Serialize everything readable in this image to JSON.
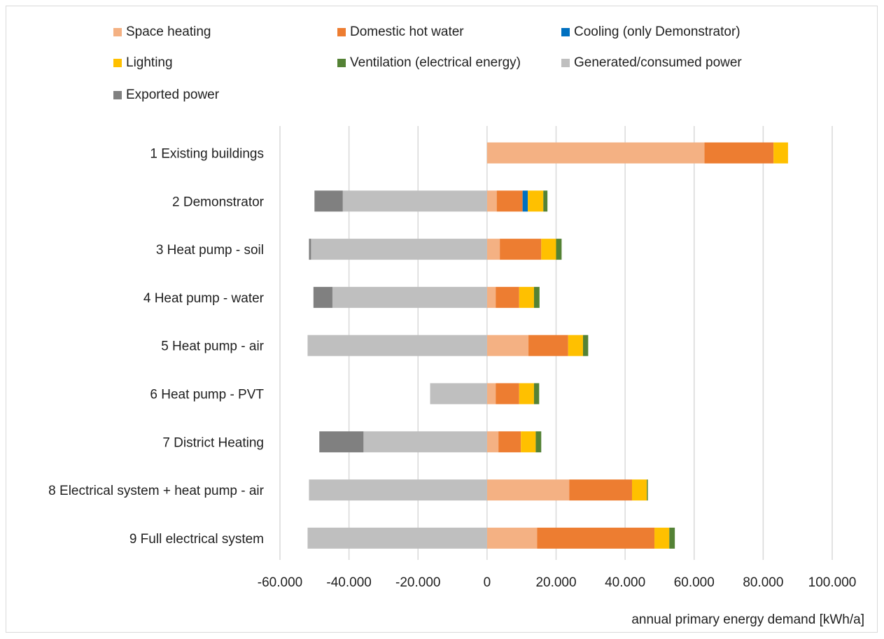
{
  "chart_data": {
    "type": "bar",
    "orientation": "horizontal",
    "stacked": true,
    "categories": [
      "1 Existing buildings",
      "2 Demonstrator",
      "3 Heat pump - soil",
      "4 Heat pump - water",
      "5 Heat pump - air",
      "6 Heat pump - PVT",
      "7 District Heating",
      "8 Electrical system + heat pump - air",
      "9 Full electrical system"
    ],
    "series": [
      {
        "name": "Space heating",
        "color": "#f4b183",
        "values": [
          63000,
          2800,
          3700,
          2500,
          12000,
          2500,
          3300,
          23800,
          14500
        ]
      },
      {
        "name": "Domestic hot water",
        "color": "#ed7d31",
        "values": [
          20000,
          7500,
          12000,
          6800,
          11500,
          6800,
          6500,
          18200,
          34000
        ]
      },
      {
        "name": "Cooling (only Demonstrator)",
        "color": "#0070c0",
        "values": [
          0,
          1500,
          0,
          0,
          0,
          0,
          0,
          0,
          0
        ]
      },
      {
        "name": "Lighting",
        "color": "#ffc000",
        "values": [
          4200,
          4500,
          4300,
          4300,
          4300,
          4300,
          4300,
          4300,
          4300
        ]
      },
      {
        "name": "Ventilation (electrical energy)",
        "color": "#548235",
        "values": [
          0,
          1200,
          1600,
          1600,
          1500,
          1500,
          1600,
          300,
          1600
        ]
      },
      {
        "name": "Generated/consumed power",
        "color": "#bfbfbf",
        "values": [
          0,
          -41800,
          -51000,
          -44800,
          -52000,
          -16500,
          -35800,
          -51600,
          -52000
        ]
      },
      {
        "name": "Exported power",
        "color": "#808080",
        "values": [
          0,
          -8200,
          -600,
          -5500,
          0,
          0,
          -12800,
          0,
          0
        ]
      }
    ],
    "xlim": [
      -60000,
      100000
    ],
    "xticks": [
      -60000,
      -40000,
      -20000,
      0,
      20000,
      40000,
      60000,
      80000,
      100000
    ],
    "xtick_labels": [
      "-60.000",
      "-40.000",
      "-20.000",
      "0",
      "20.000",
      "40.000",
      "60.000",
      "80.000",
      "100.000"
    ],
    "xlabel": "annual primary energy demand [kWh/a]",
    "grid": "vertical",
    "legend_position": "top"
  }
}
